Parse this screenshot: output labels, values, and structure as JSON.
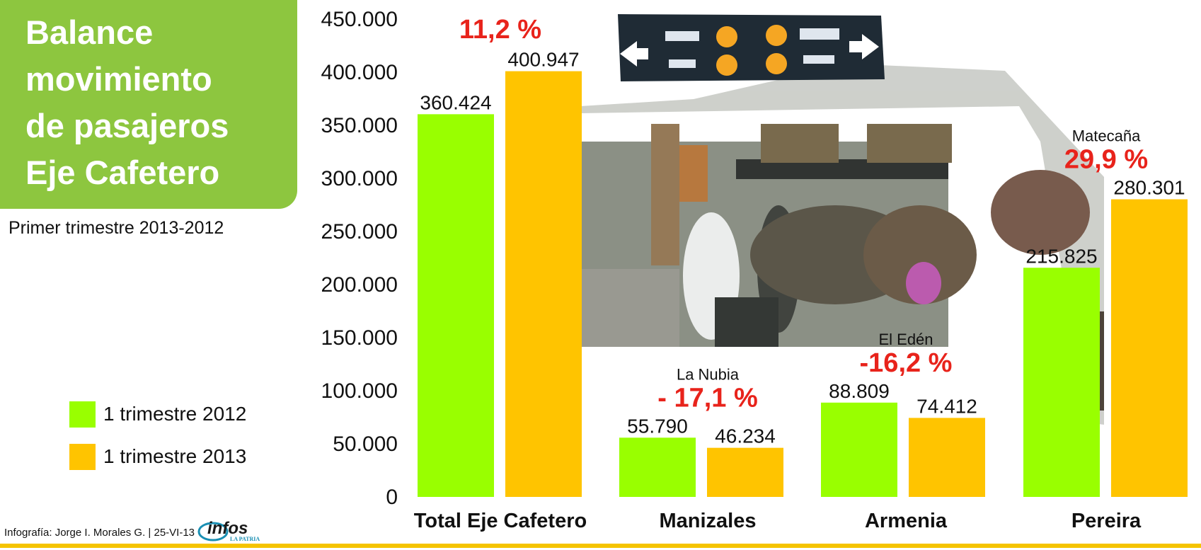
{
  "header": {
    "title_lines": [
      "Balance",
      "movimiento",
      "de pasajeros",
      "Eje Cafetero"
    ],
    "subtitle": "Primer trimestre 2013-2012"
  },
  "legend": {
    "items": [
      {
        "label": "1 trimestre 2012",
        "color": "#99ff00"
      },
      {
        "label": "1 trimestre 2013",
        "color": "#ffc400"
      }
    ]
  },
  "footer": {
    "credit": "Infografía: Jorge I. Morales G. | 25-VI-13",
    "logo_text": "infos",
    "logo_subtext": "LA PATRIA"
  },
  "chart_data": {
    "type": "bar",
    "categories": [
      "Total Eje Cafetero",
      "Manizales",
      "Armenia",
      "Pereira"
    ],
    "series": [
      {
        "name": "1 trimestre 2012",
        "values": [
          360424,
          55790,
          88809,
          215825
        ],
        "labels": [
          "360.424",
          "55.790",
          "88.809",
          "215.825"
        ],
        "color": "#99ff00"
      },
      {
        "name": "1 trimestre 2013",
        "values": [
          400947,
          46234,
          74412,
          280301
        ],
        "labels": [
          "400.947",
          "46.234",
          "74.412",
          "280.301"
        ],
        "color": "#ffc400"
      }
    ],
    "ylim": [
      0,
      450000
    ],
    "yticks": [
      {
        "value": 0,
        "label": "0"
      },
      {
        "value": 50000,
        "label": "50.000"
      },
      {
        "value": 100000,
        "label": "100.000"
      },
      {
        "value": 150000,
        "label": "150.000"
      },
      {
        "value": 200000,
        "label": "200.000"
      },
      {
        "value": 250000,
        "label": "250.000"
      },
      {
        "value": 300000,
        "label": "300.000"
      },
      {
        "value": 350000,
        "label": "350.000"
      },
      {
        "value": 400000,
        "label": "400.000"
      },
      {
        "value": 450000,
        "label": "450.000"
      }
    ],
    "annotations": [
      {
        "category": 0,
        "airport": "",
        "change": "11,2  %",
        "change_color": "#e8231b"
      },
      {
        "category": 1,
        "airport": "La Nubia",
        "change": "- 17,1 %",
        "change_color": "#e8231b"
      },
      {
        "category": 2,
        "airport": "El Edén",
        "change": "-16,2 %",
        "change_color": "#e8231b"
      },
      {
        "category": 3,
        "airport": "Matecaña",
        "change": "29,9 %",
        "change_color": "#e8231b"
      }
    ],
    "grid": false,
    "legend_position": "bottom-left"
  }
}
